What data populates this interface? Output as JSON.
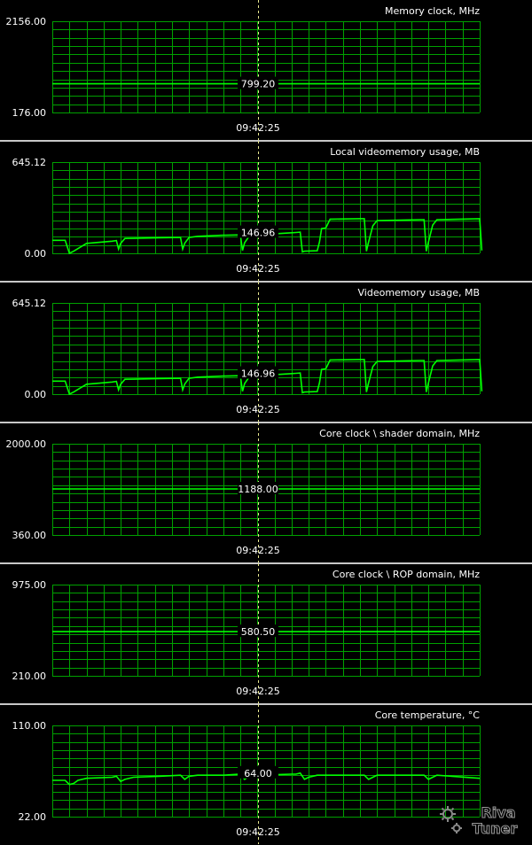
{
  "app": {
    "name": "RivaTuner",
    "logo_text_top": "Riva",
    "logo_text_bottom": "Tuner"
  },
  "cursor_time": "09:42:25",
  "colors": {
    "background": "#000000",
    "grid": "#00a000",
    "trace": "#00ff00",
    "cursor_line": "#e8e890",
    "separator": "#c8c8c8",
    "text": "#ffffff"
  },
  "chart_data": [
    {
      "type": "line",
      "title": "Memory clock, MHz",
      "ymax_label": "2156.00",
      "ymin_label": "176.00",
      "ylim": [
        176,
        2156
      ],
      "cursor_value": "799.20",
      "series": [
        {
          "x": [
            0,
            100
          ],
          "y": [
            799.2,
            799.2
          ]
        }
      ]
    },
    {
      "type": "line",
      "title": "Local videomemory usage, MB",
      "ymax_label": "645.12",
      "ymin_label": "0.00",
      "ylim": [
        0,
        645.12
      ],
      "cursor_value": "146.96",
      "series": [
        {
          "x": [
            0,
            3,
            4,
            5,
            8,
            14,
            15,
            15.5,
            16,
            17,
            19,
            25,
            30,
            30.5,
            31,
            32,
            34,
            40,
            44,
            44.5,
            45,
            46,
            48,
            56,
            57,
            58,
            58.5,
            59,
            62,
            62.5,
            63,
            64,
            65,
            72,
            73,
            73.5,
            74,
            75,
            76,
            86,
            87,
            87.5,
            88,
            89,
            90,
            100,
            100.5
          ],
          "y": [
            92,
            92,
            0,
            15,
            70,
            86,
            90,
            30,
            70,
            105,
            106,
            110,
            112,
            30,
            72,
            112,
            120,
            128,
            130,
            20,
            75,
            118,
            130,
            145,
            147,
            150,
            10,
            15,
            18,
            80,
            175,
            180,
            242,
            245,
            245,
            15,
            80,
            195,
            232,
            238,
            238,
            15,
            80,
            200,
            238,
            244,
            20
          ]
        }
      ]
    },
    {
      "type": "line",
      "title": "Videomemory usage, MB",
      "ymax_label": "645.12",
      "ymin_label": "0.00",
      "ylim": [
        0,
        645.12
      ],
      "cursor_value": "146.96",
      "series": [
        {
          "x": [
            0,
            3,
            4,
            5,
            8,
            14,
            15,
            15.5,
            16,
            17,
            19,
            25,
            30,
            30.5,
            31,
            32,
            34,
            40,
            44,
            44.5,
            45,
            46,
            48,
            56,
            57,
            58,
            58.5,
            59,
            62,
            62.5,
            63,
            64,
            65,
            72,
            73,
            73.5,
            74,
            75,
            76,
            86,
            87,
            87.5,
            88,
            89,
            90,
            100,
            100.5
          ],
          "y": [
            92,
            92,
            0,
            15,
            70,
            86,
            90,
            30,
            70,
            105,
            106,
            110,
            112,
            30,
            72,
            112,
            120,
            128,
            130,
            20,
            75,
            118,
            130,
            145,
            147,
            150,
            10,
            15,
            18,
            80,
            175,
            180,
            242,
            245,
            245,
            15,
            80,
            195,
            232,
            238,
            238,
            15,
            80,
            200,
            238,
            244,
            20
          ]
        }
      ]
    },
    {
      "type": "line",
      "title": "Core clock \\ shader domain, MHz",
      "ymax_label": "2000.00",
      "ymin_label": "360.00",
      "ylim": [
        360,
        2000
      ],
      "cursor_value": "1188.00",
      "series": [
        {
          "x": [
            0,
            100
          ],
          "y": [
            1188,
            1188
          ]
        }
      ]
    },
    {
      "type": "line",
      "title": "Core clock \\ ROP domain, MHz",
      "ymax_label": "975.00",
      "ymin_label": "210.00",
      "ylim": [
        210,
        975
      ],
      "cursor_value": "580.50",
      "series": [
        {
          "x": [
            0,
            100
          ],
          "y": [
            580.5,
            580.5
          ]
        }
      ]
    },
    {
      "type": "line",
      "title": "Core temperature, °C",
      "ymax_label": "110.00",
      "ymin_label": "22.00",
      "ylim": [
        22,
        110
      ],
      "cursor_value": "64.00",
      "series": [
        {
          "x": [
            0,
            3,
            4,
            5,
            6,
            8,
            14,
            15,
            16,
            17,
            19,
            25,
            30,
            31,
            32,
            34,
            40,
            44,
            45,
            46,
            48,
            56,
            57,
            58,
            59,
            60,
            62,
            72,
            73,
            74,
            75,
            76,
            86,
            87,
            88,
            89,
            90,
            100
          ],
          "y": [
            57,
            57,
            53,
            54,
            57,
            59,
            60,
            61,
            56,
            58,
            60,
            61,
            62,
            58,
            61,
            62,
            62,
            63,
            58,
            61,
            62,
            63,
            63,
            64,
            58,
            60,
            62,
            62,
            62,
            58,
            60,
            62,
            62,
            62,
            58,
            60,
            62,
            59
          ]
        }
      ]
    }
  ]
}
